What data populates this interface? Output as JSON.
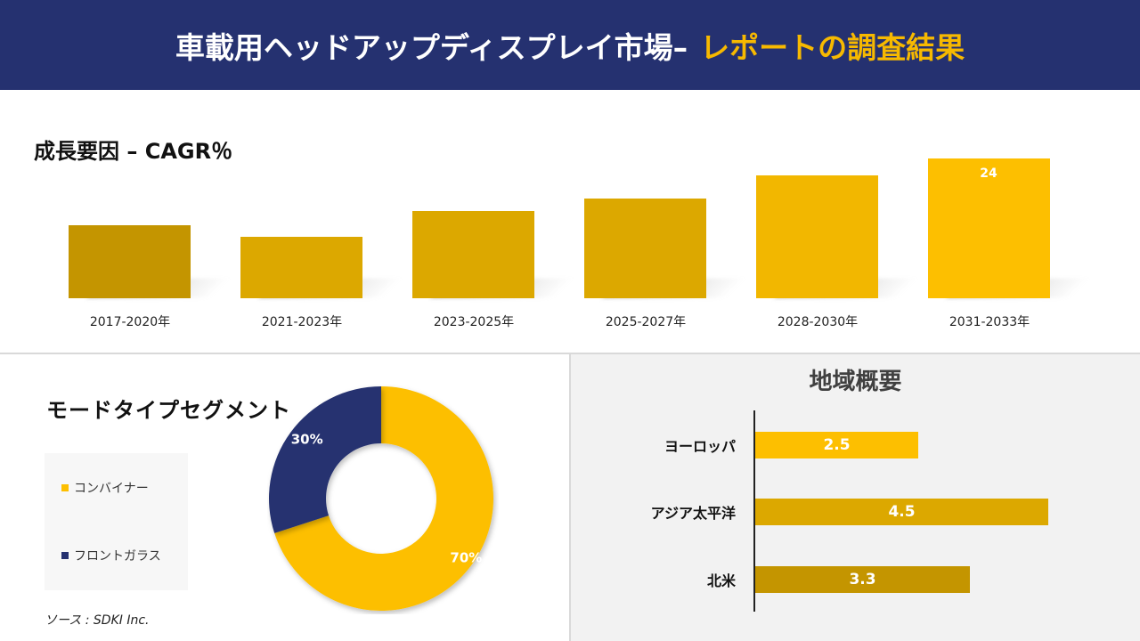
{
  "header": {
    "title_main": "車載用ヘッドアップディスプレイ市場–",
    "title_accent": "レポートの調査結果"
  },
  "cagr_section": {
    "title": "成長要因 – CAGR％"
  },
  "segment_section": {
    "title": "モードタイプセグメント",
    "legend": [
      "コンバイナー",
      "フロントガラス"
    ]
  },
  "region_section": {
    "title": "地域概要"
  },
  "source": "ソース : SDKI Inc.",
  "colors": {
    "header_bg": "#253170",
    "accent": "#f7b900",
    "bar_dark": "#c49500",
    "bar_mid": "#dca800",
    "bar_bright": "#fdbf00",
    "navy": "#253170"
  },
  "chart_data": [
    {
      "type": "bar",
      "title": "成長要因 – CAGR％",
      "categories": [
        "2017-2020年",
        "2021-2023年",
        "2023-2025年",
        "2025-2027年",
        "2028-2030年",
        "2031-2033年"
      ],
      "values": [
        12.5,
        10.5,
        15,
        17,
        21,
        24
      ],
      "data_labels": [
        "",
        "",
        "",
        "",
        "",
        "24"
      ],
      "bar_colors": [
        "#c49500",
        "#dca800",
        "#dca800",
        "#dca800",
        "#f2b700",
        "#fdbf00"
      ],
      "ylim": [
        0,
        25
      ],
      "grid": false
    },
    {
      "type": "pie",
      "title": "モードタイプセグメント",
      "labels": [
        "コンバイナー",
        "フロントガラス"
      ],
      "values": [
        70,
        30
      ],
      "data_labels": [
        "70%",
        "30%"
      ],
      "colors": [
        "#fdbf00",
        "#253170"
      ],
      "legend": "left"
    },
    {
      "type": "bar",
      "orientation": "horizontal",
      "title": "地域概要",
      "categories": [
        "ヨーロッパ",
        "アジア太平洋",
        "北米"
      ],
      "values": [
        2.5,
        4.5,
        3.3
      ],
      "data_labels": [
        "2.5",
        "4.5",
        "3.3"
      ],
      "bar_colors": [
        "#fdbf00",
        "#dca800",
        "#c49500"
      ],
      "xlim": [
        0,
        5
      ],
      "grid": false
    }
  ]
}
